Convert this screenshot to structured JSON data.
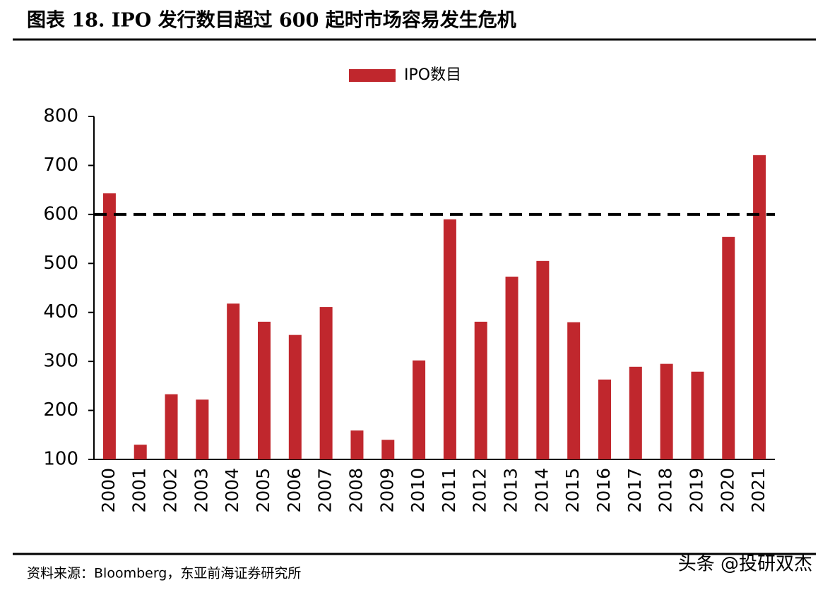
{
  "chart_data": {
    "type": "bar",
    "title": "图表 18. IPO 发行数目超过 600 起时市场容易发生危机",
    "categories": [
      "2000",
      "2001",
      "2002",
      "2003",
      "2004",
      "2005",
      "2006",
      "2007",
      "2008",
      "2009",
      "2010",
      "2011",
      "2012",
      "2013",
      "2014",
      "2015",
      "2016",
      "2017",
      "2018",
      "2019",
      "2020",
      "2021"
    ],
    "series": [
      {
        "name": "IPO数目",
        "color": "#c0272d",
        "values": [
          643,
          130,
          233,
          222,
          418,
          381,
          354,
          411,
          159,
          140,
          302,
          590,
          381,
          473,
          505,
          380,
          263,
          289,
          295,
          279,
          554,
          721
        ]
      }
    ],
    "ylim": [
      100,
      800
    ],
    "yticks": [
      100,
      200,
      300,
      400,
      500,
      600,
      700,
      800
    ],
    "reference_line": 600,
    "grid": false,
    "legend": "top",
    "source": "资料来源：Bloomberg，东亚前海证券研究所"
  },
  "watermark": "头条 @投研双杰"
}
